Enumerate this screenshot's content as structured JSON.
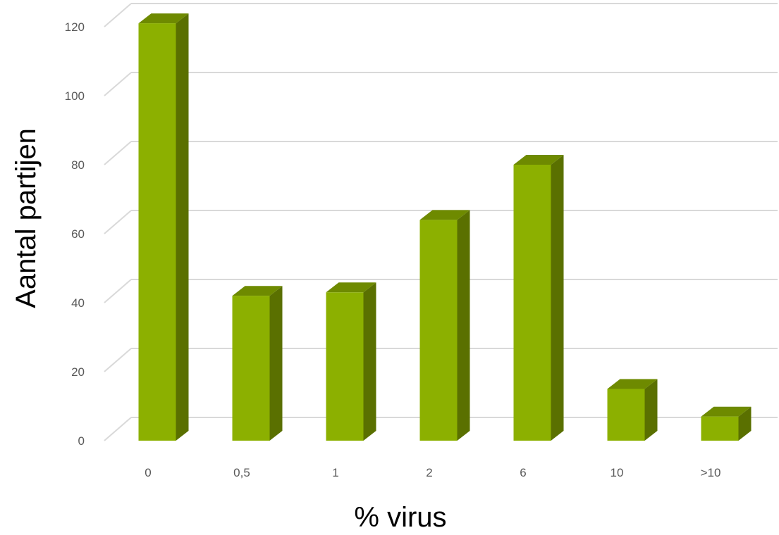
{
  "chart_data": {
    "type": "bar",
    "style": "3d-column",
    "title": "",
    "xlabel": "% virus",
    "ylabel": "Aantal partijen",
    "categories": [
      "0",
      "0,5",
      "1",
      "2",
      "6",
      "10",
      ">10"
    ],
    "values": [
      121,
      42,
      43,
      64,
      80,
      15,
      7
    ],
    "ylim": [
      0,
      120
    ],
    "yticks": [
      0,
      20,
      40,
      60,
      80,
      100,
      120
    ],
    "grid": true,
    "legend": "none",
    "colors": {
      "front": "#8cb000",
      "side": "#5a7000",
      "top": "#6e8a00",
      "grid": "#d9d9d9",
      "tick_text": "#595959"
    }
  }
}
